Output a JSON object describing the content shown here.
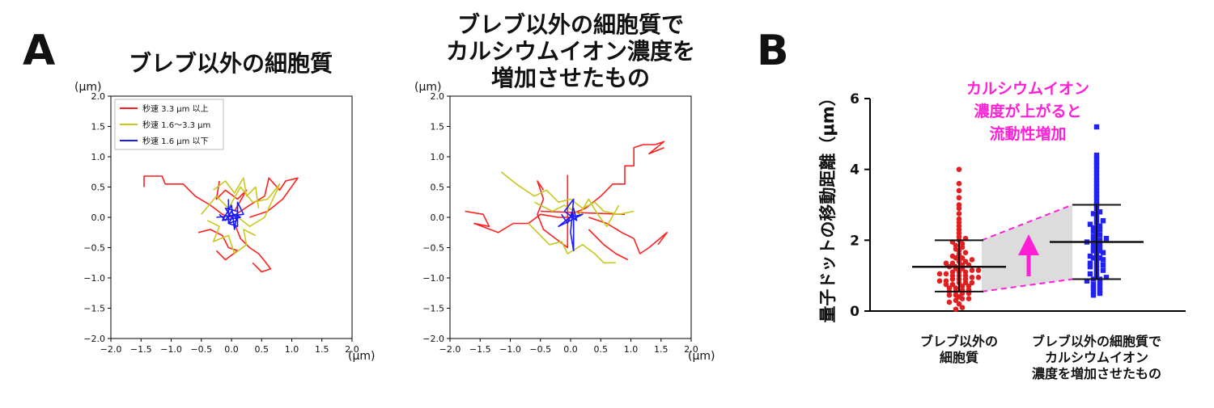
{
  "panel_letters": [
    "A",
    "B"
  ],
  "chart_data": [
    {
      "type": "line",
      "panel": "A",
      "title": "ブレブ以外の細胞質",
      "x_unit": "(μm)",
      "y_unit": "(μm)",
      "xlim": [
        -2.0,
        2.0
      ],
      "ylim": [
        -2.0,
        2.0
      ],
      "x_ticks": [
        "−2.0",
        "−1.5",
        "−1.0",
        "−0.5",
        "0.0",
        "0.5",
        "1.0",
        "1.5",
        "2.0"
      ],
      "y_ticks": [
        "−2.0",
        "−1.5",
        "−1.0",
        "−0.5",
        "0.0",
        "0.5",
        "1.0",
        "1.5",
        "2.0"
      ],
      "legend": {
        "position": "top-left",
        "entries": [
          {
            "label": "秒速 3.3 μm 以上",
            "color": "#ff2020"
          },
          {
            "label": "秒速 1.6～3.3 μm",
            "color": "#c8c820"
          },
          {
            "label": "秒速 1.6 μm 以下",
            "color": "#1a1aff"
          }
        ]
      },
      "series": [
        {
          "color": "#ff2020",
          "points": [
            [
              -1.45,
              0.5
            ],
            [
              -1.45,
              0.68
            ],
            [
              -1.15,
              0.68
            ],
            [
              -1.1,
              0.55
            ],
            [
              -0.8,
              0.55
            ],
            [
              -0.6,
              0.35
            ],
            [
              -0.35,
              0.2
            ],
            [
              -0.15,
              0.05
            ],
            [
              0.0,
              0.0
            ]
          ]
        },
        {
          "color": "#ff2020",
          "points": [
            [
              0.0,
              0.0
            ],
            [
              0.3,
              0.2
            ],
            [
              0.55,
              0.35
            ],
            [
              0.62,
              0.65
            ],
            [
              0.8,
              0.45
            ],
            [
              0.9,
              0.6
            ],
            [
              1.1,
              0.65
            ],
            [
              0.85,
              0.3
            ],
            [
              0.6,
              0.1
            ],
            [
              0.3,
              0.0
            ]
          ]
        },
        {
          "color": "#ff2020",
          "points": [
            [
              0.05,
              -0.1
            ],
            [
              0.15,
              -0.35
            ],
            [
              0.3,
              -0.5
            ],
            [
              0.45,
              -0.6
            ],
            [
              0.55,
              -0.72
            ],
            [
              0.65,
              -0.85
            ],
            [
              0.5,
              -0.9
            ],
            [
              0.35,
              -0.75
            ]
          ]
        },
        {
          "color": "#ff2020",
          "points": [
            [
              -0.55,
              -0.25
            ],
            [
              -0.35,
              -0.2
            ],
            [
              -0.15,
              -0.3
            ],
            [
              -0.05,
              -0.5
            ],
            [
              0.1,
              -0.55
            ],
            [
              -0.1,
              -0.7
            ],
            [
              -0.25,
              -0.55
            ]
          ]
        },
        {
          "color": "#ff2020",
          "points": [
            [
              -0.2,
              0.6
            ],
            [
              -0.25,
              0.3
            ],
            [
              -0.1,
              0.45
            ],
            [
              0.1,
              0.3
            ],
            [
              0.25,
              0.45
            ],
            [
              0.05,
              0.1
            ]
          ]
        },
        {
          "color": "#c8c820",
          "points": [
            [
              -0.5,
              0.05
            ],
            [
              -0.25,
              0.35
            ],
            [
              -0.05,
              0.15
            ],
            [
              0.15,
              0.5
            ],
            [
              0.35,
              0.25
            ],
            [
              0.6,
              0.3
            ],
            [
              0.8,
              0.55
            ],
            [
              0.55,
              0.0
            ],
            [
              0.3,
              -0.15
            ],
            [
              0.05,
              0.05
            ]
          ]
        },
        {
          "color": "#c8c820",
          "points": [
            [
              -0.4,
              -0.05
            ],
            [
              -0.2,
              -0.15
            ],
            [
              -0.3,
              -0.4
            ],
            [
              -0.05,
              -0.3
            ],
            [
              0.05,
              -0.6
            ],
            [
              0.25,
              -0.45
            ],
            [
              0.2,
              -0.2
            ],
            [
              0.4,
              -0.3
            ]
          ]
        },
        {
          "color": "#c8c820",
          "points": [
            [
              -0.3,
              0.45
            ],
            [
              -0.1,
              0.6
            ],
            [
              0.05,
              0.4
            ],
            [
              0.2,
              0.65
            ],
            [
              0.25,
              0.35
            ],
            [
              0.4,
              0.5
            ],
            [
              0.45,
              0.15
            ]
          ]
        },
        {
          "color": "#1a1aff",
          "points": [
            [
              -0.2,
              0.05
            ],
            [
              -0.1,
              -0.05
            ],
            [
              0.0,
              0.1
            ],
            [
              0.1,
              -0.05
            ],
            [
              -0.05,
              -0.1
            ],
            [
              0.05,
              0.05
            ],
            [
              0.15,
              0.0
            ],
            [
              -0.15,
              -0.05
            ],
            [
              0.0,
              0.2
            ],
            [
              0.05,
              -0.2
            ],
            [
              0.1,
              0.1
            ],
            [
              -0.1,
              0.15
            ],
            [
              0.0,
              0.0
            ]
          ]
        },
        {
          "color": "#1a1aff",
          "points": [
            [
              -0.05,
              0.3
            ],
            [
              -0.05,
              -0.1
            ],
            [
              0.1,
              -0.15
            ],
            [
              0.1,
              0.25
            ],
            [
              0.2,
              0.05
            ],
            [
              -0.25,
              0.0
            ]
          ]
        }
      ]
    },
    {
      "type": "line",
      "panel": "A",
      "title": [
        "ブレブ以外の細胞質で",
        "カルシウムイオン濃度を",
        "増加させたもの"
      ],
      "x_unit": "(μm)",
      "y_unit": "(μm)",
      "xlim": [
        -2.0,
        2.0
      ],
      "ylim": [
        -2.0,
        2.0
      ],
      "x_ticks": [
        "−2.0",
        "−1.5",
        "−1.0",
        "−0.5",
        "0.0",
        "0.5",
        "1.0",
        "1.5",
        "2.0"
      ],
      "y_ticks": [
        "−2.0",
        "−1.5",
        "−1.0",
        "−0.5",
        "0.0",
        "0.5",
        "1.0",
        "1.5",
        "2.0"
      ],
      "series": [
        {
          "color": "#ff2020",
          "points": [
            [
              -1.75,
              0.1
            ],
            [
              -1.45,
              0.05
            ],
            [
              -1.35,
              -0.15
            ],
            [
              -1.6,
              -0.1
            ],
            [
              -1.2,
              -0.25
            ],
            [
              -0.95,
              -0.1
            ],
            [
              -0.7,
              -0.1
            ],
            [
              -0.5,
              0.05
            ],
            [
              -0.2,
              0.0
            ],
            [
              0.0,
              0.0
            ]
          ]
        },
        {
          "color": "#ff2020",
          "points": [
            [
              0.0,
              0.05
            ],
            [
              0.25,
              0.15
            ],
            [
              0.5,
              0.35
            ],
            [
              0.7,
              0.55
            ],
            [
              0.9,
              0.55
            ],
            [
              0.9,
              0.85
            ],
            [
              1.05,
              0.85
            ],
            [
              1.05,
              1.15
            ],
            [
              1.2,
              1.2
            ],
            [
              1.4,
              1.2
            ],
            [
              1.55,
              1.25
            ],
            [
              1.3,
              1.05
            ],
            [
              1.55,
              1.15
            ]
          ]
        },
        {
          "color": "#ff2020",
          "points": [
            [
              0.3,
              0.0
            ],
            [
              0.6,
              -0.1
            ],
            [
              0.85,
              -0.25
            ],
            [
              1.05,
              -0.35
            ],
            [
              1.15,
              -0.6
            ],
            [
              1.3,
              -0.5
            ],
            [
              1.6,
              -0.25
            ],
            [
              1.45,
              -0.45
            ]
          ]
        },
        {
          "color": "#ff2020",
          "points": [
            [
              -0.05,
              0.7
            ],
            [
              -0.05,
              -0.5
            ],
            [
              -0.45,
              -0.2
            ],
            [
              -0.55,
              0.05
            ],
            [
              -0.45,
              0.3
            ],
            [
              -0.55,
              0.6
            ],
            [
              -0.45,
              0.45
            ]
          ]
        },
        {
          "color": "#ff2020",
          "points": [
            [
              -0.5,
              0.1
            ],
            [
              0.9,
              0.05
            ]
          ]
        },
        {
          "color": "#ff2020",
          "points": [
            [
              0.3,
              -0.2
            ],
            [
              0.55,
              -0.45
            ],
            [
              0.75,
              -0.6
            ],
            [
              0.95,
              -0.7
            ]
          ]
        },
        {
          "color": "#c8c820",
          "points": [
            [
              -1.15,
              0.75
            ],
            [
              -0.9,
              0.55
            ],
            [
              -0.6,
              0.35
            ],
            [
              -0.4,
              0.45
            ],
            [
              -0.2,
              0.25
            ],
            [
              0.0,
              0.3
            ],
            [
              0.2,
              0.15
            ],
            [
              0.4,
              0.25
            ],
            [
              0.55,
              0.1
            ],
            [
              0.8,
              0.05
            ],
            [
              1.05,
              0.1
            ]
          ]
        },
        {
          "color": "#c8c820",
          "points": [
            [
              -0.7,
              -0.1
            ],
            [
              -0.5,
              -0.3
            ],
            [
              -0.35,
              -0.45
            ],
            [
              -0.15,
              -0.4
            ],
            [
              -0.05,
              -0.6
            ],
            [
              0.2,
              -0.45
            ],
            [
              0.4,
              -0.6
            ],
            [
              0.55,
              -0.75
            ],
            [
              0.75,
              -0.75
            ]
          ]
        },
        {
          "color": "#c8c820",
          "points": [
            [
              -0.6,
              0.25
            ],
            [
              -0.3,
              0.1
            ],
            [
              -0.1,
              0.2
            ],
            [
              0.15,
              0.05
            ],
            [
              0.3,
              0.3
            ],
            [
              0.45,
              0.05
            ],
            [
              0.6,
              -0.15
            ],
            [
              0.8,
              0.2
            ]
          ]
        },
        {
          "color": "#1a1aff",
          "points": [
            [
              -0.15,
              0.05
            ],
            [
              -0.05,
              -0.1
            ],
            [
              0.05,
              0.15
            ],
            [
              0.1,
              -0.05
            ],
            [
              -0.1,
              0.1
            ],
            [
              0.05,
              0.3
            ],
            [
              0.0,
              -0.25
            ],
            [
              0.05,
              -0.55
            ],
            [
              0.05,
              0.05
            ],
            [
              -0.2,
              -0.15
            ],
            [
              0.2,
              0.05
            ],
            [
              0.0,
              0.0
            ]
          ]
        }
      ]
    },
    {
      "type": "scatter",
      "panel": "B",
      "ylabel": "量子ドットの移動距離（μm）",
      "ylim": [
        0,
        6
      ],
      "y_ticks": [
        "0",
        "2",
        "4",
        "6"
      ],
      "categories": [
        "ブレブ以外の\n細胞質",
        "ブレブ以外の細胞質で\nカルシウムイオン\n濃度を増加させたもの"
      ],
      "series": [
        {
          "category": "ブレブ以外の\n細胞質",
          "marker": "circle",
          "color": "#e02020",
          "mean": 1.25,
          "sd_low": 0.55,
          "sd_high": 2.0,
          "values": [
            0.05,
            0.1,
            0.2,
            0.25,
            0.3,
            0.35,
            0.35,
            0.4,
            0.45,
            0.45,
            0.5,
            0.5,
            0.55,
            0.55,
            0.6,
            0.6,
            0.65,
            0.65,
            0.7,
            0.7,
            0.75,
            0.75,
            0.8,
            0.8,
            0.8,
            0.85,
            0.85,
            0.9,
            0.9,
            0.9,
            0.95,
            0.95,
            1.0,
            1.0,
            1.0,
            1.05,
            1.05,
            1.1,
            1.1,
            1.1,
            1.15,
            1.15,
            1.2,
            1.2,
            1.25,
            1.25,
            1.3,
            1.3,
            1.35,
            1.35,
            1.4,
            1.4,
            1.45,
            1.5,
            1.5,
            1.55,
            1.6,
            1.65,
            1.7,
            1.75,
            1.8,
            1.85,
            1.9,
            1.95,
            2.0,
            2.05,
            2.1,
            2.2,
            2.3,
            2.4,
            2.5,
            2.6,
            2.75,
            2.9,
            3.0,
            3.2,
            3.4,
            3.6,
            4.0
          ]
        },
        {
          "category": "ブレブ以外の細胞質で\nカルシウムイオン\n濃度を増加させたもの",
          "marker": "square",
          "color": "#2222ee",
          "mean": 1.95,
          "sd_low": 0.9,
          "sd_high": 3.0,
          "values": [
            0.45,
            0.5,
            0.55,
            0.6,
            0.65,
            0.7,
            0.75,
            0.8,
            0.85,
            0.9,
            0.9,
            0.95,
            1.0,
            1.05,
            1.1,
            1.15,
            1.2,
            1.25,
            1.3,
            1.3,
            1.35,
            1.4,
            1.45,
            1.5,
            1.5,
            1.55,
            1.6,
            1.65,
            1.7,
            1.7,
            1.75,
            1.8,
            1.85,
            1.9,
            1.95,
            2.0,
            2.0,
            2.05,
            2.1,
            2.15,
            2.2,
            2.25,
            2.3,
            2.35,
            2.4,
            2.45,
            2.5,
            2.55,
            2.6,
            2.7,
            2.75,
            2.8,
            2.9,
            3.0,
            3.1,
            3.2,
            3.3,
            3.4,
            3.5,
            3.6,
            3.7,
            3.8,
            3.9,
            4.0,
            4.1,
            4.2,
            4.3,
            4.4,
            5.2
          ]
        }
      ],
      "annotation": [
        "カルシウムイオン",
        "濃度が上がると",
        "流動性増加"
      ],
      "annotation_color": "#ff1fd6"
    }
  ]
}
